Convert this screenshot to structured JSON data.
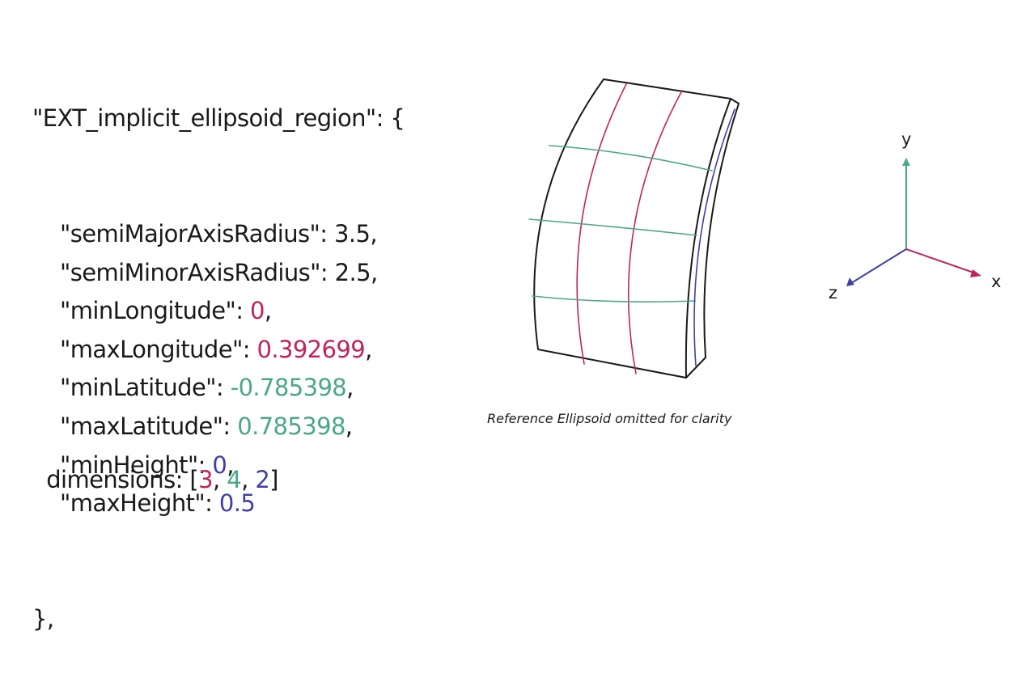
{
  "colors": {
    "text": "#1a1a1a",
    "longitude": "#c0245e",
    "latitude": "#4aa886",
    "height": "#3f3fa6"
  },
  "code": {
    "open": "\"EXT_implicit_ellipsoid_region\": {",
    "fields": [
      {
        "key": "\"semiMajorAxisRadius\": ",
        "value": "3.5",
        "suffix": ",",
        "color": "text"
      },
      {
        "key": "\"semiMinorAxisRadius\": ",
        "value": "2.5",
        "suffix": ",",
        "color": "text"
      },
      {
        "key": "\"minLongitude\": ",
        "value": "0",
        "suffix": ",",
        "color": "longitude"
      },
      {
        "key": "\"maxLongitude\": ",
        "value": "0.392699",
        "suffix": ",",
        "color": "longitude"
      },
      {
        "key": "\"minLatitude\": ",
        "value": "-0.785398",
        "suffix": ",",
        "color": "latitude"
      },
      {
        "key": "\"maxLatitude\": ",
        "value": "0.785398",
        "suffix": ",",
        "color": "latitude"
      },
      {
        "key": "\"minHeight\": ",
        "value": "0",
        "suffix": ",",
        "color": "height"
      },
      {
        "key": "\"maxHeight\": ",
        "value": "0.5",
        "suffix": "",
        "color": "height"
      }
    ],
    "close": "},"
  },
  "dimensions": {
    "prefix": "dimensions: [",
    "values": [
      "3",
      "4",
      "2"
    ],
    "separator": ", ",
    "suffix": "]"
  },
  "caption": "Reference Ellipsoid omitted for clarity",
  "axes": {
    "x": "x",
    "y": "y",
    "z": "z"
  }
}
